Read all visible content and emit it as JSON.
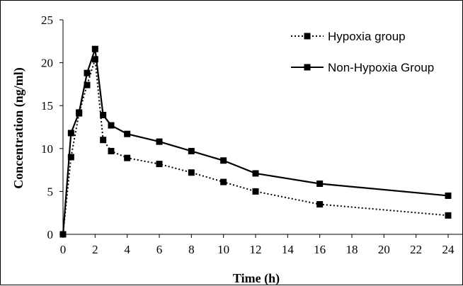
{
  "chart_data": {
    "type": "line",
    "title": "",
    "xlabel": "Time (h)",
    "ylabel": "Concentration (ng/ml)",
    "xlim": [
      0,
      24
    ],
    "ylim": [
      0,
      25
    ],
    "xticks": [
      0,
      2,
      4,
      6,
      8,
      10,
      12,
      14,
      16,
      18,
      20,
      22,
      24
    ],
    "yticks": [
      0,
      5,
      10,
      15,
      20,
      25
    ],
    "grid": false,
    "legend_position": "top-right",
    "series": [
      {
        "name": "Hypoxia group",
        "line_style": "dotted",
        "marker": "square",
        "color": "#000000",
        "x": [
          0,
          0.5,
          1,
          1.5,
          2,
          2.5,
          3,
          4,
          6,
          8,
          10,
          12,
          16,
          24
        ],
        "y": [
          0,
          9.0,
          14.1,
          17.4,
          20.4,
          11.0,
          9.7,
          8.9,
          8.2,
          7.2,
          6.1,
          5.0,
          3.5,
          2.2
        ]
      },
      {
        "name": "Non-Hypoxia Group",
        "line_style": "solid",
        "marker": "square",
        "color": "#000000",
        "x": [
          0,
          0.5,
          1,
          1.5,
          2,
          2.5,
          3,
          4,
          6,
          8,
          10,
          12,
          16,
          24
        ],
        "y": [
          0,
          11.8,
          14.2,
          18.8,
          21.6,
          13.9,
          12.7,
          11.7,
          10.8,
          9.7,
          8.6,
          7.1,
          5.9,
          4.5
        ]
      }
    ]
  }
}
